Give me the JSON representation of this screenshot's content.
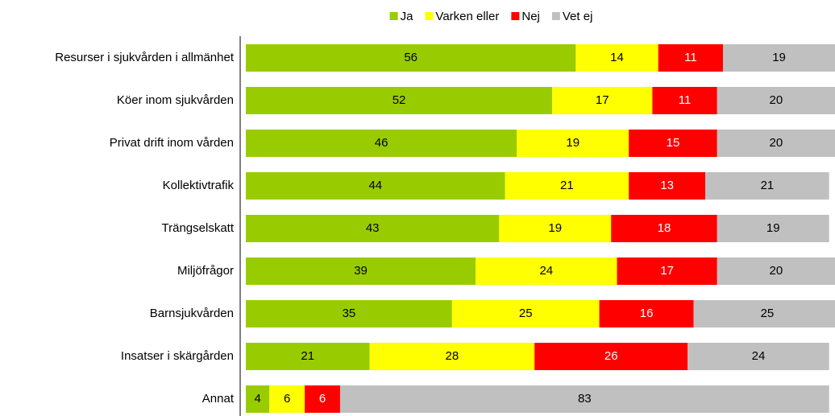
{
  "chart_data": {
    "type": "stacked_barh",
    "categories": [
      "Resurser i sjukvården i allmänhet",
      "Köer inom sjukvården",
      "Privat drift inom vården",
      "Kollektivtrafik",
      "Trängselskatt",
      "Miljöfrågor",
      "Barnsjukvården",
      "Insatser i skärgården",
      "Annat"
    ],
    "series": [
      {
        "name": "Ja",
        "color": "#99cc00",
        "values": [
          56,
          52,
          46,
          44,
          43,
          39,
          35,
          21,
          4
        ]
      },
      {
        "name": "Varken eller",
        "color": "#ffff00",
        "values": [
          14,
          17,
          19,
          21,
          19,
          24,
          25,
          28,
          6
        ]
      },
      {
        "name": "Nej",
        "color": "#ff0000",
        "values": [
          11,
          11,
          15,
          13,
          18,
          17,
          16,
          26,
          6
        ]
      },
      {
        "name": "Vet ej",
        "color": "#c0c0c0",
        "values": [
          19,
          20,
          20,
          21,
          19,
          20,
          25,
          24,
          83
        ]
      }
    ],
    "xlim": [
      0,
      100
    ],
    "legend": "top"
  }
}
